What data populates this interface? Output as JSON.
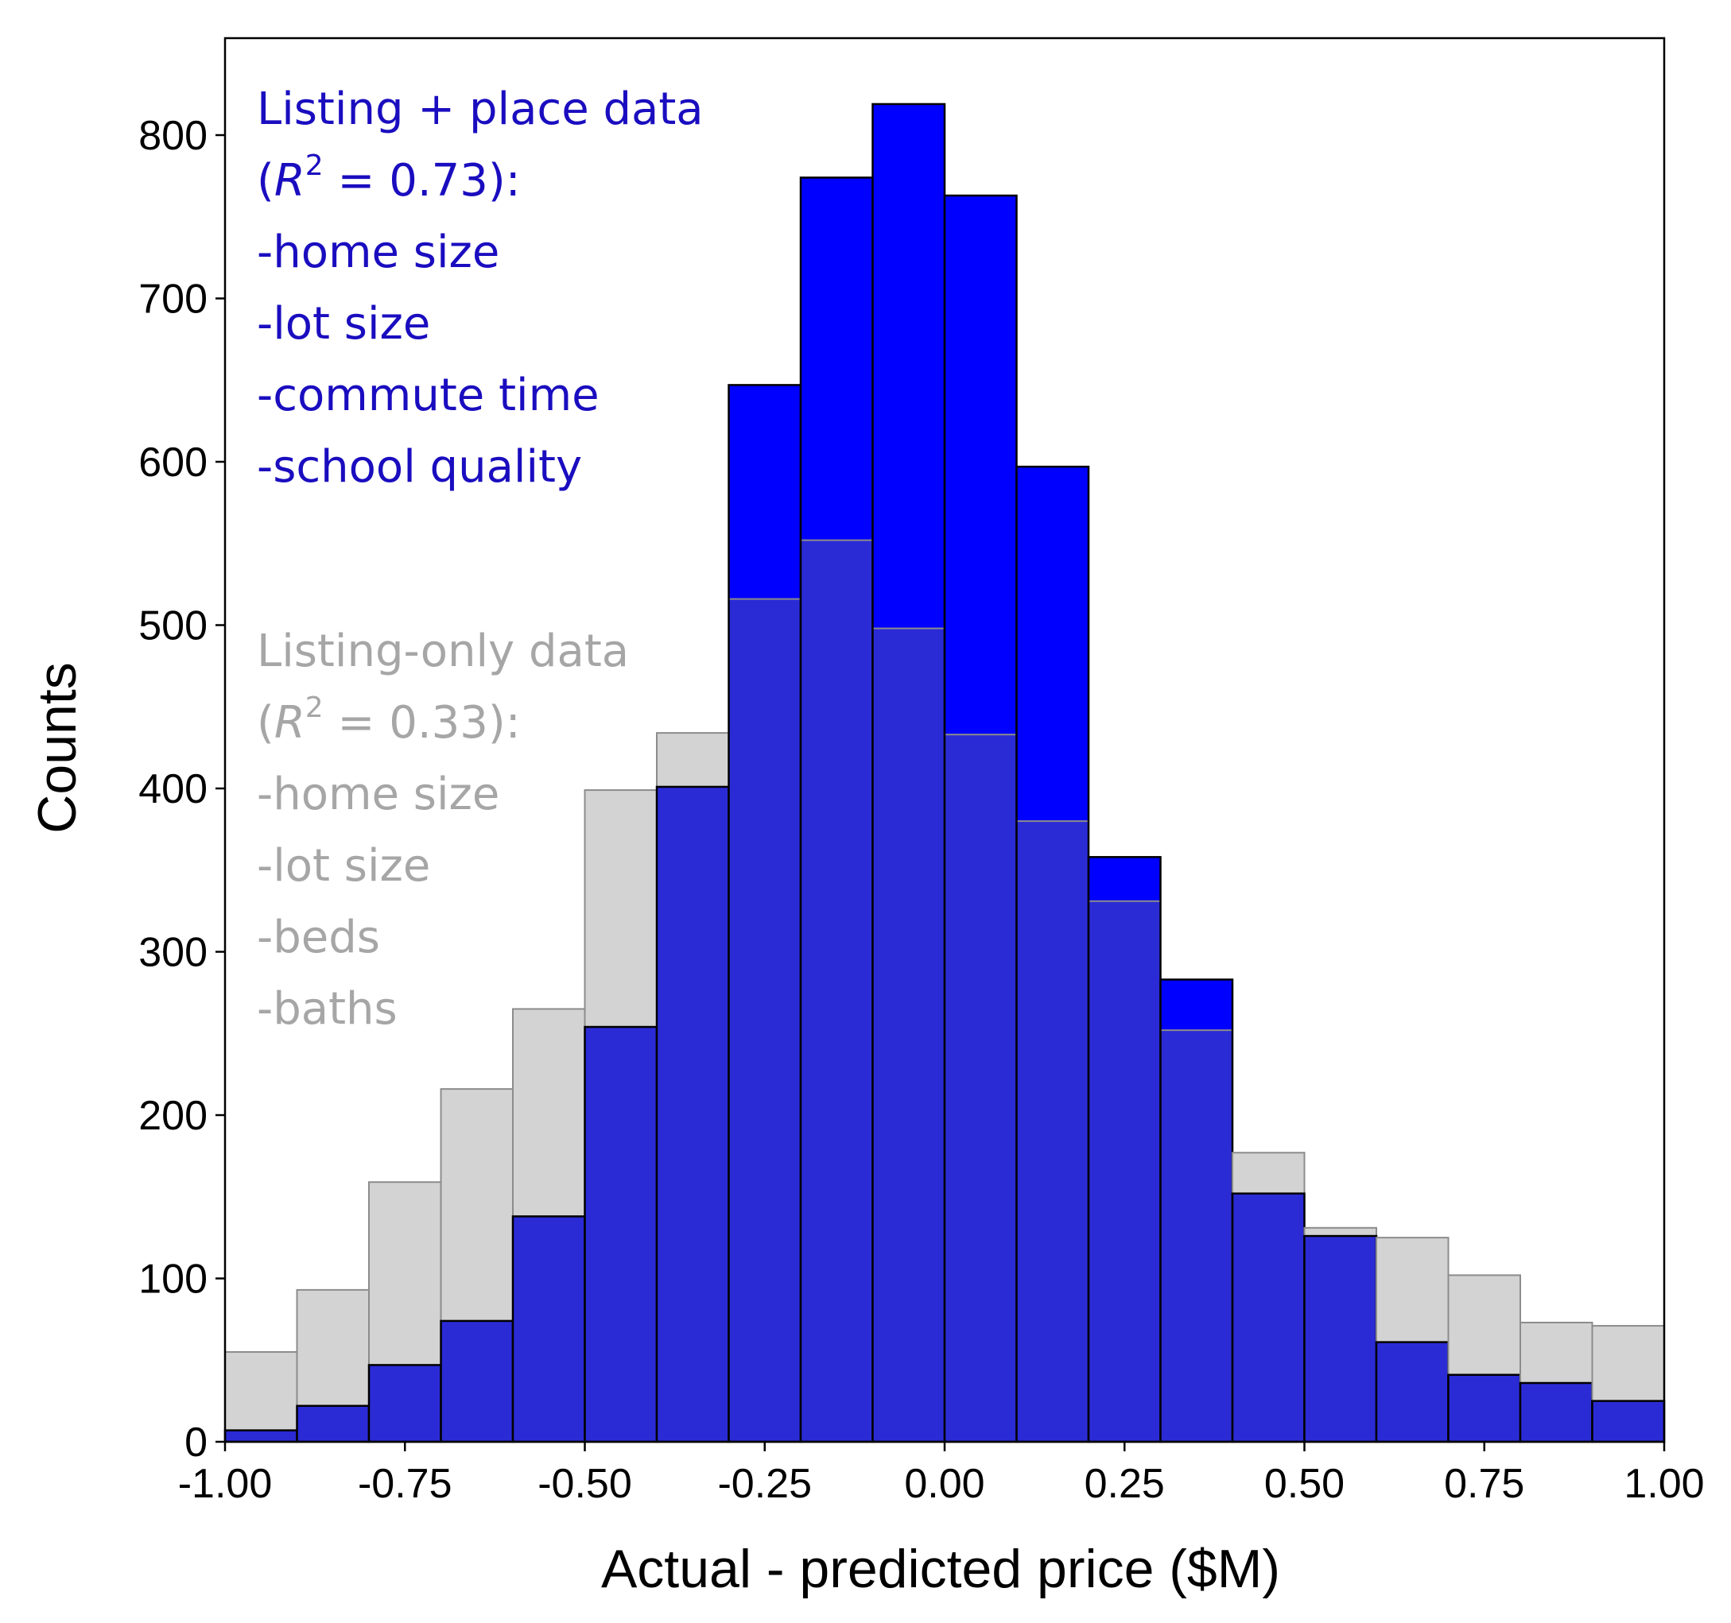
{
  "colors": {
    "place_series": "#0000ff",
    "listing_series": "#d3d3d3",
    "overlap": "#2b2bd6",
    "bar_edge": "#000000",
    "place_text": "#1a0dbf",
    "listing_text": "#a6a6a6"
  },
  "chart_data": {
    "type": "bar",
    "xlabel": "Actual - predicted price ($M)",
    "ylabel": "Counts",
    "xlim": [
      -1.0,
      1.0
    ],
    "ylim": [
      0,
      860
    ],
    "grid": false,
    "bin_width": 0.1,
    "bin_edges": [
      -1.0,
      -0.9,
      -0.8,
      -0.7,
      -0.6,
      -0.5,
      -0.4,
      -0.3,
      -0.2,
      -0.1,
      0.0,
      0.1,
      0.2,
      0.3,
      0.4,
      0.5,
      0.6,
      0.7,
      0.8,
      0.9,
      1.0
    ],
    "x_ticks": [
      "-1.00",
      "-0.75",
      "-0.50",
      "-0.25",
      "0.00",
      "0.25",
      "0.50",
      "0.75",
      "1.00"
    ],
    "x_tick_values": [
      -1.0,
      -0.75,
      -0.5,
      -0.25,
      0.0,
      0.25,
      0.5,
      0.75,
      1.0
    ],
    "y_ticks": [
      "0",
      "100",
      "200",
      "300",
      "400",
      "500",
      "600",
      "700",
      "800"
    ],
    "y_tick_values": [
      0,
      100,
      200,
      300,
      400,
      500,
      600,
      700,
      800
    ],
    "series": [
      {
        "name": "Listing-only data",
        "values": [
          55,
          93,
          159,
          216,
          265,
          399,
          434,
          516,
          552,
          498,
          433,
          380,
          331,
          252,
          177,
          131,
          125,
          102,
          73,
          71
        ]
      },
      {
        "name": "Listing + place data",
        "values": [
          7,
          22,
          47,
          74,
          138,
          254,
          401,
          647,
          774,
          819,
          763,
          597,
          358,
          283,
          152,
          126,
          61,
          41,
          36,
          25
        ]
      }
    ],
    "annotations": {
      "place": {
        "title": "Listing + place data",
        "r2_open": "(",
        "r2_symbol": "R",
        "r2_exp": "2",
        "r2_value": " = 0.73):",
        "features": [
          "-home size",
          "-lot size",
          "-commute time",
          "-school quality"
        ]
      },
      "listing": {
        "title": "Listing-only data",
        "r2_open": "(",
        "r2_symbol": "R",
        "r2_exp": "2",
        "r2_value": " = 0.33):",
        "features": [
          "-home size",
          "-lot size",
          "-beds",
          "-baths"
        ]
      }
    }
  }
}
